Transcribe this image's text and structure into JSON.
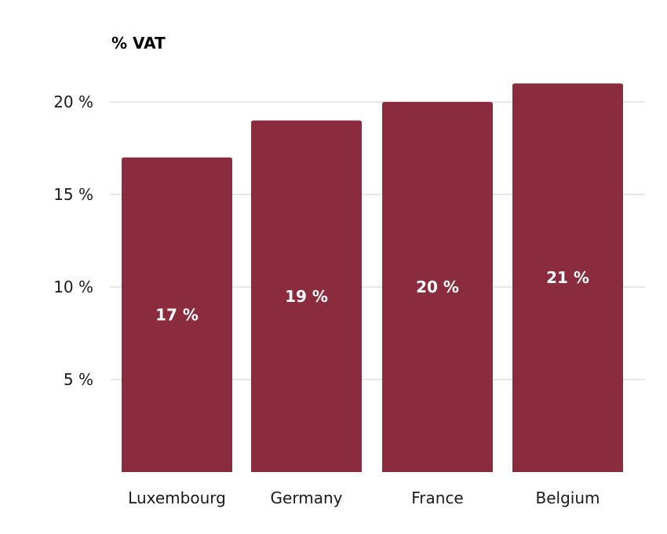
{
  "chart_data": {
    "type": "bar",
    "ylabel": "% VAT",
    "categories": [
      "Luxembourg",
      "Germany",
      "France",
      "Belgium"
    ],
    "values": [
      17,
      19,
      20,
      21
    ],
    "data_labels": [
      "17 %",
      "19 %",
      "20 %",
      "21 %"
    ],
    "yticks": [
      5,
      10,
      15,
      20
    ],
    "ytick_labels": [
      "5 %",
      "10 %",
      "15 %",
      "20 %"
    ],
    "ylim": [
      0,
      21
    ],
    "grid": true,
    "legend": "none",
    "colors": {
      "bar": "#8b2c3e",
      "grid": "#cfcfcf",
      "bar_label": "#ffffff"
    }
  }
}
